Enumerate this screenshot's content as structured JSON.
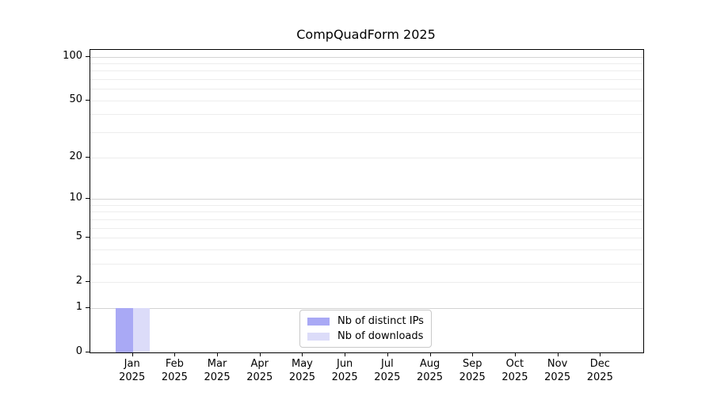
{
  "chart_data": {
    "type": "bar",
    "title": "CompQuadForm 2025",
    "x": {
      "categories": [
        "Jan",
        "Feb",
        "Mar",
        "Apr",
        "May",
        "Jun",
        "Jul",
        "Aug",
        "Sep",
        "Oct",
        "Nov",
        "Dec"
      ],
      "year_label": "2025"
    },
    "series": [
      {
        "name": "Nb of distinct IPs",
        "color": "#a9a9f5",
        "values": [
          1,
          0,
          0,
          0,
          0,
          0,
          0,
          0,
          0,
          0,
          0,
          0
        ]
      },
      {
        "name": "Nb of downloads",
        "color": "#dcdcf9",
        "values": [
          1,
          0,
          0,
          0,
          0,
          0,
          0,
          0,
          0,
          0,
          0,
          0
        ]
      }
    ],
    "y_axis": {
      "scale": "log1p",
      "ylim": [
        0,
        100
      ],
      "tick_values": [
        0,
        1,
        2,
        5,
        10,
        20,
        50,
        100
      ],
      "minor_gridlines": [
        2,
        3,
        4,
        5,
        6,
        7,
        8,
        9,
        20,
        30,
        40,
        50,
        60,
        70,
        80,
        90
      ],
      "major_gridlines": [
        1,
        10,
        100
      ]
    },
    "legend": {
      "position": "lower center"
    },
    "grid": true,
    "colors": {
      "major_grid": "#d3d3d3",
      "minor_grid": "#ededed",
      "spine": "#000000",
      "background": "#ffffff"
    }
  }
}
